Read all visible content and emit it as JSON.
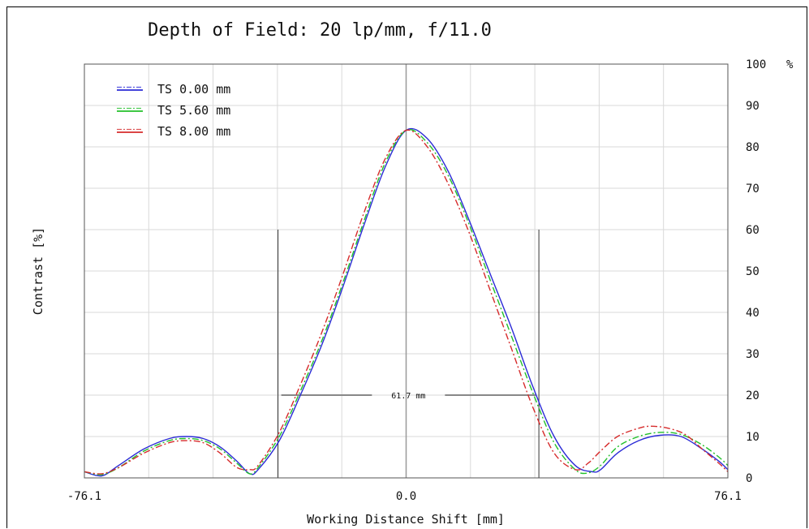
{
  "chart_data": {
    "type": "line",
    "title": "Depth of Field: 20 lp/mm, f/11.0",
    "xlabel": "Working Distance Shift [mm]",
    "ylabel": "Contrast [%]",
    "y_unit": "%",
    "xlim": [
      -76.1,
      76.1
    ],
    "ylim": [
      0,
      100
    ],
    "x_tick_labels": [
      "-76.1",
      "0.0",
      "76.1"
    ],
    "y_tick_labels": [
      "0",
      "10",
      "20",
      "30",
      "40",
      "50",
      "60",
      "70",
      "80",
      "90",
      "100"
    ],
    "grid": true,
    "legend_position": "top-left",
    "annotation": {
      "text": "61.7 mm",
      "x_range": [
        -30.3,
        31.4
      ],
      "y": 20,
      "marker_top": 60
    },
    "series": [
      {
        "name": "TS 0.00 mm",
        "color": "#2b2bd6",
        "dash": "solid",
        "points": [
          [
            -76.1,
            1.5
          ],
          [
            -72,
            0.5
          ],
          [
            -68,
            3
          ],
          [
            -62,
            7
          ],
          [
            -56,
            9.5
          ],
          [
            -52,
            10
          ],
          [
            -48,
            9.5
          ],
          [
            -44,
            7.5
          ],
          [
            -40,
            4
          ],
          [
            -37,
            1
          ],
          [
            -35,
            2
          ],
          [
            -30,
            9
          ],
          [
            -25,
            20
          ],
          [
            -20,
            32
          ],
          [
            -15,
            46
          ],
          [
            -10,
            61
          ],
          [
            -5,
            75
          ],
          [
            0,
            84
          ],
          [
            5,
            82
          ],
          [
            10,
            74
          ],
          [
            15,
            62
          ],
          [
            20,
            49
          ],
          [
            25,
            36
          ],
          [
            30,
            22
          ],
          [
            35,
            10
          ],
          [
            40,
            3
          ],
          [
            44,
            1.5
          ],
          [
            46,
            2
          ],
          [
            50,
            6
          ],
          [
            55,
            9
          ],
          [
            60,
            10.3
          ],
          [
            65,
            10
          ],
          [
            70,
            7
          ],
          [
            74,
            4
          ],
          [
            76.1,
            2
          ]
        ]
      },
      {
        "name": "TS 5.60 mm",
        "color": "#22c02a",
        "dash": "dashdot",
        "points": [
          [
            -76.1,
            1.5
          ],
          [
            -72,
            0.8
          ],
          [
            -68,
            2.5
          ],
          [
            -62,
            6.5
          ],
          [
            -56,
            9
          ],
          [
            -52,
            9.5
          ],
          [
            -48,
            9
          ],
          [
            -44,
            7
          ],
          [
            -40,
            3.5
          ],
          [
            -37,
            1
          ],
          [
            -35,
            2.5
          ],
          [
            -30,
            10
          ],
          [
            -25,
            21
          ],
          [
            -20,
            33
          ],
          [
            -15,
            47
          ],
          [
            -10,
            62
          ],
          [
            -5,
            76
          ],
          [
            0,
            84
          ],
          [
            5,
            81
          ],
          [
            10,
            73
          ],
          [
            15,
            61
          ],
          [
            20,
            47.5
          ],
          [
            25,
            34
          ],
          [
            30,
            20.5
          ],
          [
            35,
            8.5
          ],
          [
            40,
            2
          ],
          [
            43,
            1.2
          ],
          [
            46,
            3
          ],
          [
            50,
            7.5
          ],
          [
            55,
            10
          ],
          [
            60,
            11
          ],
          [
            65,
            10.5
          ],
          [
            70,
            8
          ],
          [
            74,
            5
          ],
          [
            76.1,
            3
          ]
        ]
      },
      {
        "name": "TS 8.00 mm",
        "color": "#d62b2b",
        "dash": "dashdot",
        "points": [
          [
            -76.1,
            1.5
          ],
          [
            -72,
            1
          ],
          [
            -68,
            2.5
          ],
          [
            -62,
            6
          ],
          [
            -56,
            8.5
          ],
          [
            -52,
            9
          ],
          [
            -48,
            8.5
          ],
          [
            -44,
            6
          ],
          [
            -40,
            2.5
          ],
          [
            -37,
            2
          ],
          [
            -35,
            3
          ],
          [
            -30,
            11
          ],
          [
            -25,
            22.5
          ],
          [
            -20,
            35
          ],
          [
            -15,
            49
          ],
          [
            -10,
            64
          ],
          [
            -5,
            77
          ],
          [
            0,
            84
          ],
          [
            5,
            80
          ],
          [
            10,
            71
          ],
          [
            15,
            59
          ],
          [
            20,
            45
          ],
          [
            25,
            31
          ],
          [
            30,
            17
          ],
          [
            35,
            6
          ],
          [
            40,
            2
          ],
          [
            43,
            3.5
          ],
          [
            46,
            6.5
          ],
          [
            50,
            10
          ],
          [
            55,
            12
          ],
          [
            58,
            12.5
          ],
          [
            62,
            12
          ],
          [
            66,
            10.5
          ],
          [
            70,
            7
          ],
          [
            74,
            3.5
          ],
          [
            76.1,
            1.5
          ]
        ]
      }
    ]
  }
}
